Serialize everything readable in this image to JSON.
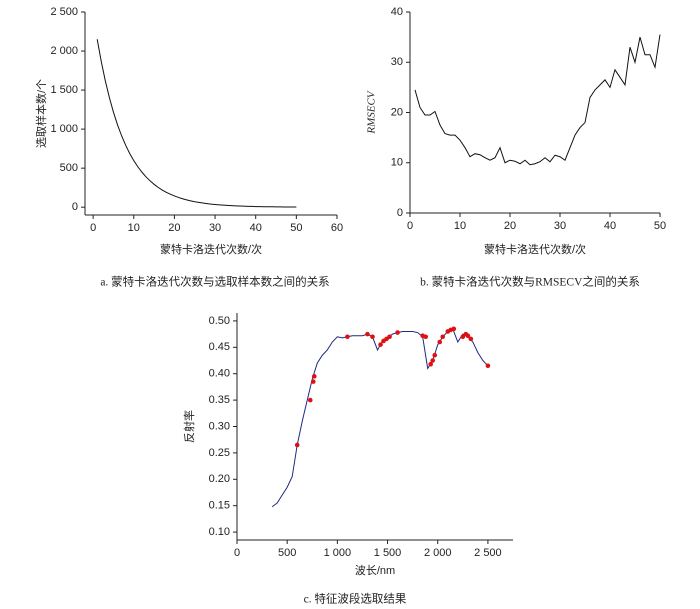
{
  "chart_data": [
    {
      "type": "line",
      "title": "a. 蒙特卡洛迭代次数与选取样本数之间的关系",
      "x_label": "蒙特卡洛迭代次数/次",
      "y_label": "选取样本数/个",
      "color": "#111111",
      "x": [
        1,
        2,
        3,
        4,
        5,
        6,
        7,
        8,
        9,
        10,
        11,
        12,
        13,
        14,
        15,
        16,
        17,
        18,
        19,
        20,
        21,
        22,
        23,
        24,
        25,
        26,
        27,
        28,
        29,
        30,
        31,
        32,
        33,
        34,
        35,
        36,
        37,
        38,
        39,
        40,
        41,
        42,
        43,
        44,
        45,
        46,
        47,
        48,
        49,
        50
      ],
      "values": [
        2151,
        1866,
        1618,
        1403,
        1217,
        1055,
        915,
        794,
        688,
        597,
        518,
        449,
        389,
        338,
        293,
        254,
        220,
        191,
        166,
        144,
        125,
        108,
        94,
        81,
        70,
        61,
        53,
        46,
        40,
        35,
        30,
        26,
        23,
        20,
        17,
        15,
        13,
        11,
        10,
        8,
        7,
        6,
        5,
        5,
        4,
        4,
        3,
        3,
        2,
        2
      ],
      "xlim": [
        -2,
        60
      ],
      "xticks": [
        0,
        10,
        20,
        30,
        40,
        50,
        60
      ],
      "ylim": [
        -100,
        2500
      ],
      "yticks": [
        0,
        500,
        {
          "value": 1000,
          "label": "1 000"
        },
        {
          "value": 1500,
          "label": "1 500"
        },
        {
          "value": 2000,
          "label": "2 000"
        },
        {
          "value": 2500,
          "label": "2 500"
        }
      ]
    },
    {
      "type": "line",
      "title": "b. 蒙特卡洛迭代次数与RMSECV之间的关系",
      "x_label": "蒙特卡洛迭代次数/次",
      "y_label": "RMSECV",
      "color": "#111111",
      "x": [
        1,
        2,
        3,
        4,
        5,
        6,
        7,
        8,
        9,
        10,
        11,
        12,
        13,
        14,
        15,
        16,
        17,
        18,
        19,
        20,
        21,
        22,
        23,
        24,
        25,
        26,
        27,
        28,
        29,
        30,
        31,
        32,
        33,
        34,
        35,
        36,
        37,
        38,
        39,
        40,
        41,
        42,
        43,
        44,
        45,
        46,
        47,
        48,
        49,
        50
      ],
      "values": [
        24.5,
        21,
        19.5,
        19.5,
        20.2,
        17.5,
        15.8,
        15.5,
        15.5,
        14.5,
        13,
        11.2,
        11.8,
        11.6,
        11,
        10.5,
        11,
        13,
        10,
        10.5,
        10.3,
        9.8,
        10.5,
        9.6,
        9.8,
        10.2,
        11,
        10.2,
        11.5,
        11.2,
        10.5,
        13,
        15.5,
        17,
        18,
        23,
        24.5,
        25.5,
        26.5,
        25,
        28.5,
        27,
        25.5,
        33,
        30,
        35,
        31.5,
        31.5,
        29,
        35.5
      ],
      "xlim": [
        0,
        50
      ],
      "xticks": [
        0,
        10,
        20,
        30,
        40,
        50
      ],
      "ylim": [
        0,
        40
      ],
      "yticks": [
        0,
        10,
        20,
        30,
        40
      ]
    },
    {
      "type": "line",
      "title": "c. 特征波段选取结果",
      "x_label": "波长/nm",
      "y_label": "反射率",
      "series": [
        {
          "type": "line",
          "color": "#1f2a80",
          "x": [
            350,
            400,
            450,
            500,
            550,
            600,
            650,
            700,
            750,
            800,
            850,
            900,
            950,
            1000,
            1050,
            1100,
            1150,
            1200,
            1250,
            1300,
            1350,
            1400,
            1450,
            1500,
            1550,
            1600,
            1650,
            1700,
            1750,
            1800,
            1850,
            1900,
            1950,
            2000,
            2050,
            2100,
            2150,
            2200,
            2250,
            2300,
            2350,
            2400,
            2450,
            2500
          ],
          "values": [
            0.148,
            0.155,
            0.17,
            0.185,
            0.205,
            0.265,
            0.31,
            0.35,
            0.39,
            0.42,
            0.435,
            0.445,
            0.46,
            0.47,
            0.468,
            0.47,
            0.472,
            0.472,
            0.472,
            0.475,
            0.47,
            0.445,
            0.462,
            0.468,
            0.475,
            0.478,
            0.48,
            0.48,
            0.48,
            0.478,
            0.47,
            0.41,
            0.425,
            0.455,
            0.47,
            0.48,
            0.485,
            0.46,
            0.475,
            0.47,
            0.46,
            0.44,
            0.425,
            0.415
          ]
        },
        {
          "type": "scatter",
          "color": "#e01010",
          "x": [
            600,
            730,
            760,
            770,
            1100,
            1300,
            1350,
            1430,
            1460,
            1490,
            1520,
            1600,
            1850,
            1880,
            1930,
            1950,
            1970,
            2020,
            2050,
            2100,
            2130,
            2160,
            2250,
            2280,
            2300,
            2330,
            2500
          ],
          "values": [
            0.265,
            0.35,
            0.385,
            0.395,
            0.47,
            0.475,
            0.47,
            0.455,
            0.462,
            0.466,
            0.47,
            0.478,
            0.472,
            0.47,
            0.418,
            0.425,
            0.435,
            0.46,
            0.47,
            0.48,
            0.483,
            0.485,
            0.47,
            0.475,
            0.472,
            0.466,
            0.415
          ]
        }
      ],
      "xlim": [
        0,
        2750
      ],
      "xticks": [
        0,
        500,
        {
          "value": 1000,
          "label": "1 000"
        },
        {
          "value": 1500,
          "label": "1 500"
        },
        {
          "value": 2000,
          "label": "2 000"
        },
        {
          "value": 2500,
          "label": "2 500"
        }
      ],
      "ylim": [
        0.085,
        0.515
      ],
      "yticks": [
        {
          "value": 0.1,
          "label": "0.10"
        },
        {
          "value": 0.15,
          "label": "0.15"
        },
        {
          "value": 0.2,
          "label": "0.20"
        },
        {
          "value": 0.25,
          "label": "0.25"
        },
        {
          "value": 0.3,
          "label": "0.30"
        },
        {
          "value": 0.35,
          "label": "0.35"
        },
        {
          "value": 0.4,
          "label": "0.40"
        },
        {
          "value": 0.45,
          "label": "0.45"
        },
        {
          "value": 0.5,
          "label": "0.50"
        }
      ]
    }
  ]
}
